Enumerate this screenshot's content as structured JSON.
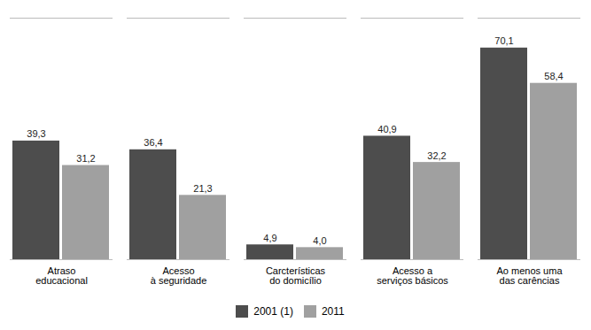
{
  "chart_data": {
    "type": "bar",
    "categories": [
      "Atraso\neducacional",
      "Acesso\nà seguridade",
      "Carcterísticas\ndo domicílio",
      "Acesso a\nserviços básicos",
      "Ao menos uma\ndas carências"
    ],
    "series": [
      {
        "name": "2001 (1)",
        "color": "#4d4d4d",
        "values": [
          39.3,
          36.4,
          4.9,
          40.9,
          70.1
        ],
        "value_labels": [
          "39,3",
          "36,4",
          "4,9",
          "40,9",
          "70,1"
        ]
      },
      {
        "name": "2011",
        "color": "#a0a0a0",
        "values": [
          31.2,
          21.3,
          4.0,
          32.2,
          58.4
        ],
        "value_labels": [
          "31,2",
          "21,3",
          "4,0",
          "32,2",
          "58,4"
        ]
      }
    ],
    "ylim": [
      0,
      80
    ],
    "data_labels": true,
    "legend": "bottom",
    "tick_labels": "x"
  }
}
